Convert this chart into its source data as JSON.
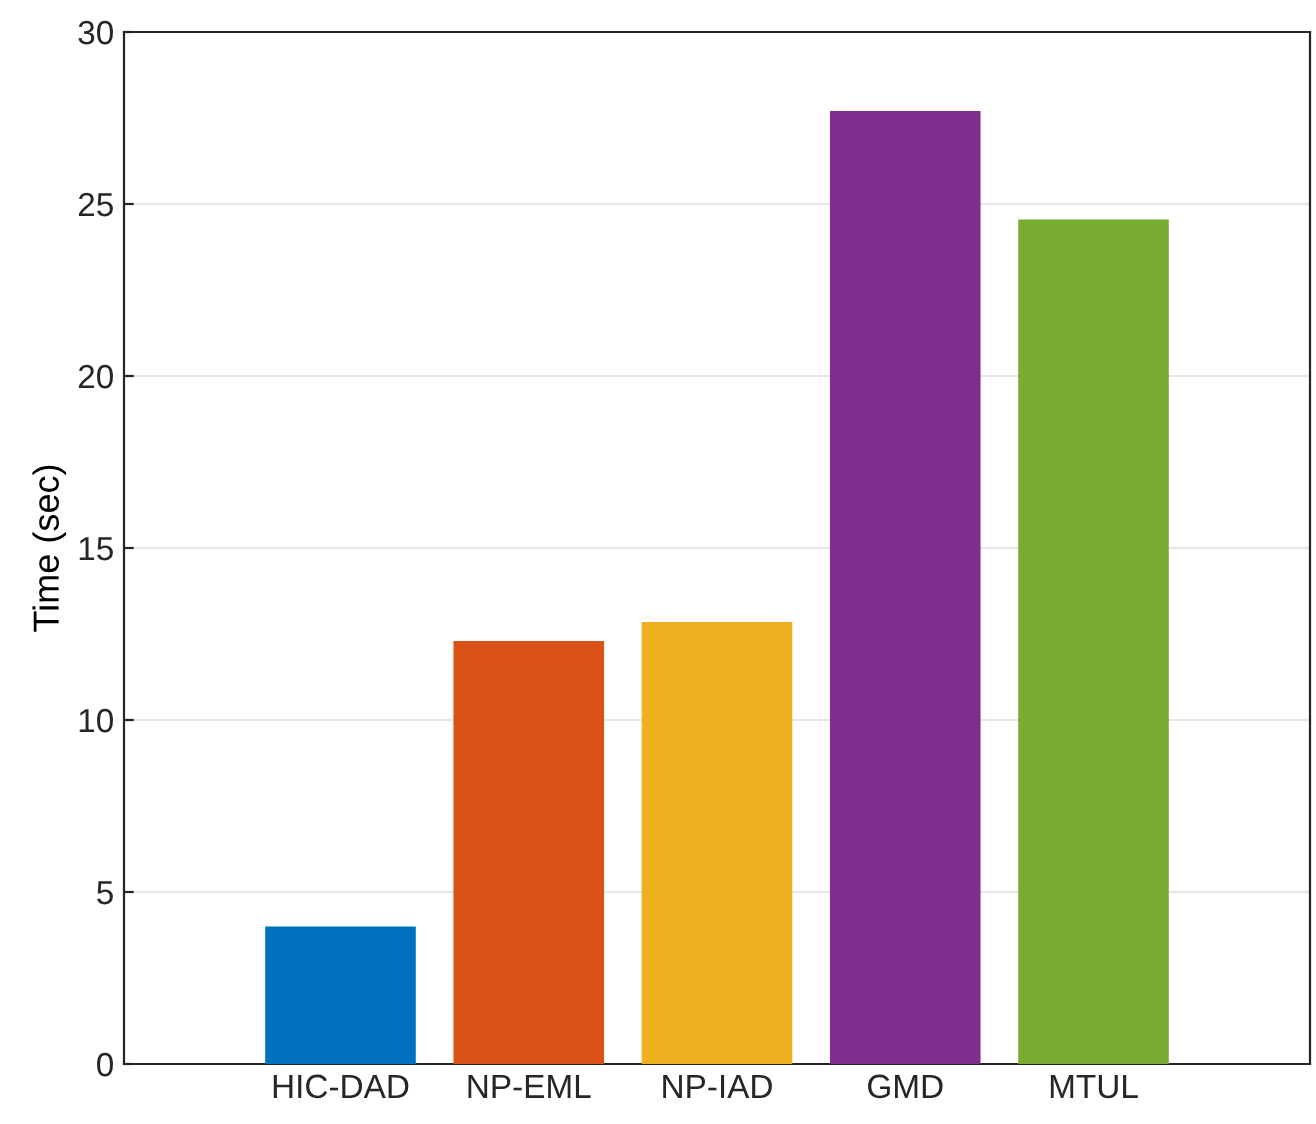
{
  "chart_data": {
    "type": "bar",
    "ylabel": "Time (sec)",
    "categories": [
      "HIC-DAD",
      "NP-EML",
      "NP-IAD",
      "GMD",
      "MTUL"
    ],
    "values": [
      4.0,
      12.3,
      12.85,
      27.7,
      24.55
    ],
    "colors": [
      "#0072bd",
      "#d95319",
      "#edb120",
      "#7e2f8e",
      "#77ac30"
    ],
    "ylim": [
      0,
      30
    ],
    "yticks": [
      0,
      5,
      10,
      15,
      20,
      25,
      30
    ],
    "grid": "y"
  }
}
